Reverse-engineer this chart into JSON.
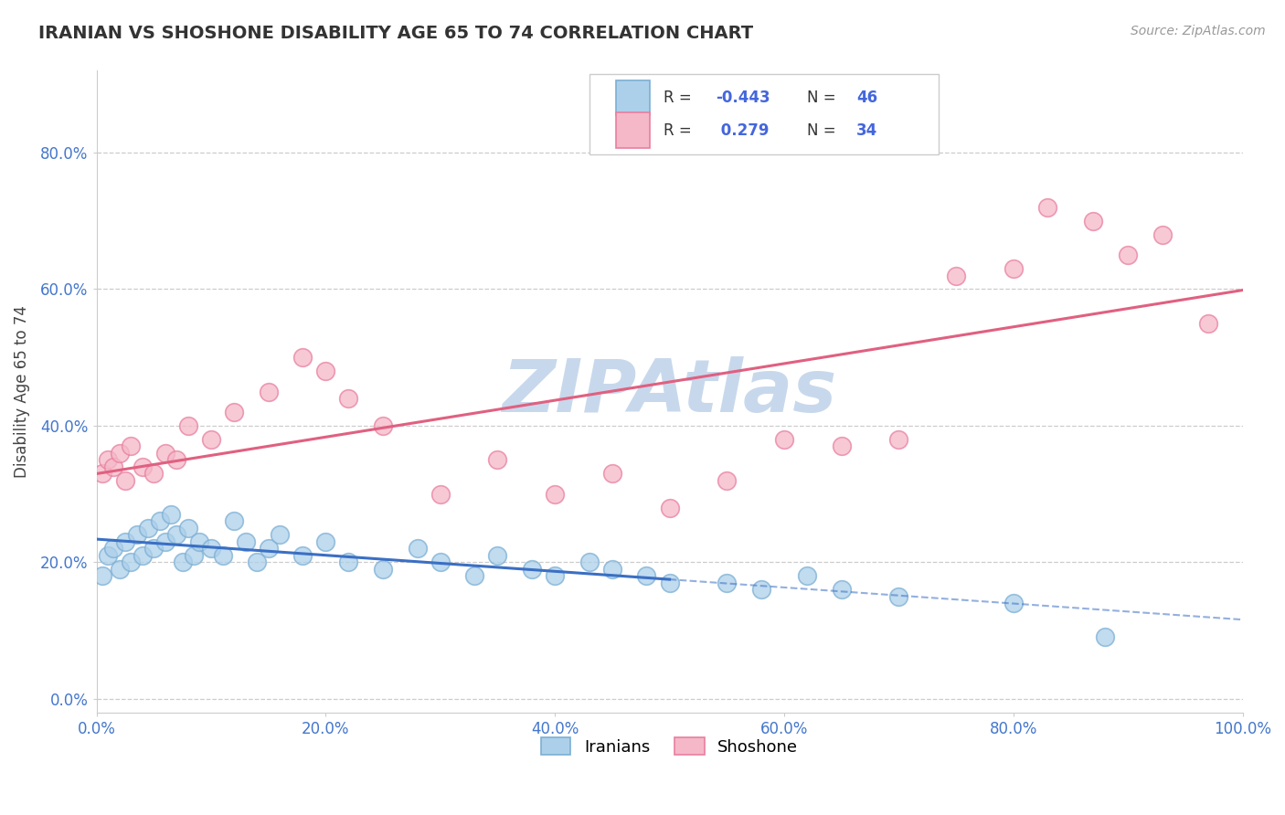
{
  "title": "IRANIAN VS SHOSHONE DISABILITY AGE 65 TO 74 CORRELATION CHART",
  "source_text": "Source: ZipAtlas.com",
  "ylabel": "Disability Age 65 to 74",
  "xlim": [
    0.0,
    1.0
  ],
  "ylim": [
    -0.02,
    0.92
  ],
  "x_ticks": [
    0.0,
    0.2,
    0.4,
    0.6,
    0.8,
    1.0
  ],
  "x_tick_labels": [
    "0.0%",
    "20.0%",
    "40.0%",
    "60.0%",
    "80.0%",
    "100.0%"
  ],
  "y_ticks": [
    0.0,
    0.2,
    0.4,
    0.6,
    0.8
  ],
  "y_tick_labels": [
    "0.0%",
    "20.0%",
    "40.0%",
    "60.0%",
    "80.0%"
  ],
  "grid_color": "#cccccc",
  "background_color": "#ffffff",
  "watermark_text": "ZIPAtlas",
  "watermark_color": "#c8d8ec",
  "series1_color": "#7bafd4",
  "series1_fill": "#add0ea",
  "series2_color": "#e87fa0",
  "series2_fill": "#f5b8c8",
  "trend1_color": "#3a6fc4",
  "trend2_color": "#e06080",
  "iranian_x": [
    0.005,
    0.01,
    0.015,
    0.02,
    0.025,
    0.03,
    0.035,
    0.04,
    0.045,
    0.05,
    0.055,
    0.06,
    0.065,
    0.07,
    0.075,
    0.08,
    0.085,
    0.09,
    0.1,
    0.11,
    0.12,
    0.13,
    0.14,
    0.15,
    0.16,
    0.18,
    0.2,
    0.22,
    0.25,
    0.28,
    0.3,
    0.33,
    0.35,
    0.38,
    0.4,
    0.43,
    0.45,
    0.48,
    0.5,
    0.55,
    0.58,
    0.62,
    0.65,
    0.7,
    0.8,
    0.88
  ],
  "iranian_y": [
    0.18,
    0.21,
    0.22,
    0.19,
    0.23,
    0.2,
    0.24,
    0.21,
    0.25,
    0.22,
    0.26,
    0.23,
    0.27,
    0.24,
    0.2,
    0.25,
    0.21,
    0.23,
    0.22,
    0.21,
    0.26,
    0.23,
    0.2,
    0.22,
    0.24,
    0.21,
    0.23,
    0.2,
    0.19,
    0.22,
    0.2,
    0.18,
    0.21,
    0.19,
    0.18,
    0.2,
    0.19,
    0.18,
    0.17,
    0.17,
    0.16,
    0.18,
    0.16,
    0.15,
    0.14,
    0.09
  ],
  "shoshone_x": [
    0.005,
    0.01,
    0.015,
    0.02,
    0.025,
    0.03,
    0.04,
    0.05,
    0.06,
    0.07,
    0.08,
    0.1,
    0.12,
    0.15,
    0.18,
    0.2,
    0.22,
    0.25,
    0.3,
    0.35,
    0.4,
    0.45,
    0.5,
    0.55,
    0.6,
    0.65,
    0.7,
    0.75,
    0.8,
    0.83,
    0.87,
    0.9,
    0.93,
    0.97
  ],
  "shoshone_y": [
    0.33,
    0.35,
    0.34,
    0.36,
    0.32,
    0.37,
    0.34,
    0.33,
    0.36,
    0.35,
    0.4,
    0.38,
    0.42,
    0.45,
    0.5,
    0.48,
    0.44,
    0.4,
    0.3,
    0.35,
    0.3,
    0.33,
    0.28,
    0.32,
    0.38,
    0.37,
    0.38,
    0.62,
    0.63,
    0.72,
    0.7,
    0.65,
    0.68,
    0.55
  ],
  "tick_color": "#4477cc",
  "title_fontsize": 14,
  "axis_fontsize": 12,
  "tick_fontsize": 12
}
